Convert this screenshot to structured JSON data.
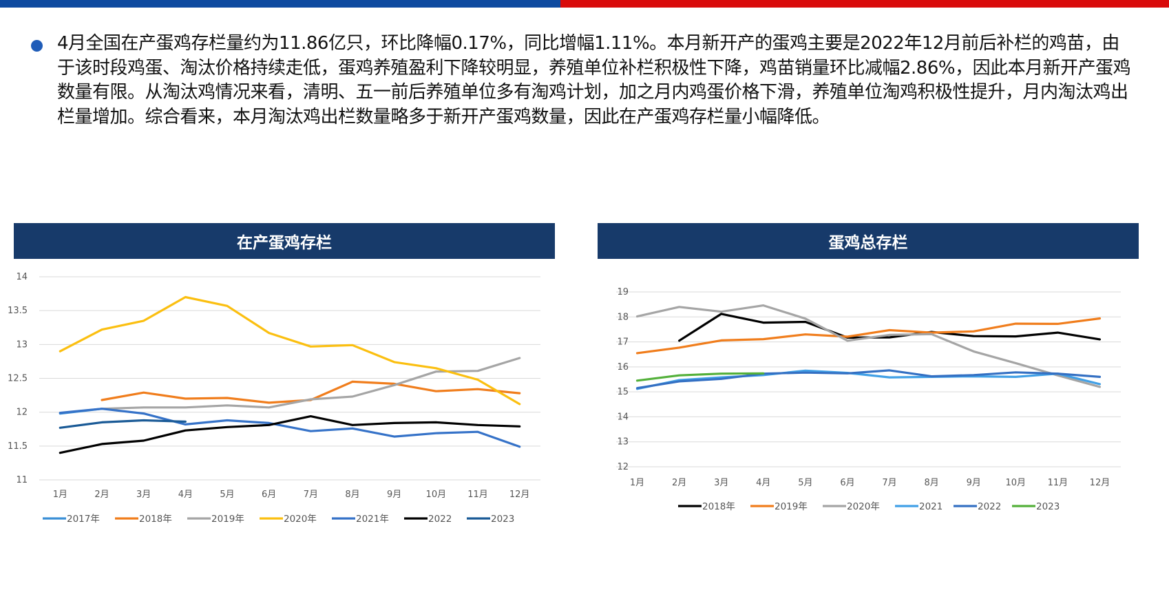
{
  "paragraph": "4月全国在产蛋鸡存栏量约为11.86亿只，环比降幅0.17%，同比增幅1.11%。本月新开产的蛋鸡主要是2022年12月前后补栏的鸡苗，由于该时段鸡蛋、淘汰价格持续走低，蛋鸡养殖盈利下降较明显，养殖单位补栏积极性下降，鸡苗销量环比减幅2.86%，因此本月新开产蛋鸡数量有限。从淘汰鸡情况来看，清明、五一前后养殖单位多有淘鸡计划，加之月内鸡蛋价格下滑，养殖单位淘鸡积极性提升，月内淘汰鸡出栏量增加。综合看来，本月淘汰鸡出栏数量略多于新开产蛋鸡数量，因此在产蛋鸡存栏量小幅降低。",
  "colors": {
    "header_bg": "#173a6a",
    "bar_blue": "#0e4aa0",
    "bar_red": "#d90b0b"
  },
  "chart_data": [
    {
      "type": "line",
      "title": "在产蛋鸡存栏",
      "xlabel": "",
      "ylabel": "",
      "categories": [
        "1月",
        "2月",
        "3月",
        "4月",
        "5月",
        "6月",
        "7月",
        "8月",
        "9月",
        "10月",
        "11月",
        "12月"
      ],
      "ylim": [
        11,
        14
      ],
      "yticks": [
        11,
        11.5,
        12,
        12.5,
        13,
        13.5,
        14
      ],
      "ytick_labels": [
        "11",
        "11.5",
        "12",
        "12.5",
        "13",
        "13.5",
        "14"
      ],
      "grid": true,
      "legend_position": "bottom",
      "series": [
        {
          "name": "2017年",
          "color": "#3b8fd6",
          "values": [
            11.98,
            12.05,
            null,
            null,
            null,
            null,
            null,
            null,
            null,
            null,
            null,
            null
          ]
        },
        {
          "name": "2018年",
          "color": "#f07d1c",
          "values": [
            null,
            12.18,
            12.29,
            12.2,
            12.21,
            12.14,
            12.18,
            12.45,
            12.42,
            12.31,
            12.34,
            12.28
          ]
        },
        {
          "name": "2019年",
          "color": "#a5a5a5",
          "values": [
            null,
            12.05,
            12.07,
            12.07,
            12.1,
            12.07,
            12.19,
            12.23,
            12.4,
            12.6,
            12.61,
            12.8
          ]
        },
        {
          "name": "2020年",
          "color": "#fbbf10",
          "values": [
            12.9,
            13.22,
            13.35,
            13.7,
            13.57,
            13.17,
            12.97,
            12.99,
            12.74,
            12.65,
            12.48,
            12.12
          ]
        },
        {
          "name": "2021年",
          "color": "#3572c8",
          "values": [
            11.99,
            12.05,
            11.98,
            11.82,
            11.88,
            11.84,
            11.72,
            11.76,
            11.64,
            11.69,
            11.71,
            11.49
          ]
        },
        {
          "name": "2022",
          "color": "#000000",
          "values": [
            11.4,
            11.53,
            11.58,
            11.73,
            11.78,
            11.81,
            11.94,
            11.81,
            11.84,
            11.85,
            11.81,
            11.79
          ]
        },
        {
          "name": "2023",
          "color": "#1a5a96",
          "values": [
            11.77,
            11.85,
            11.88,
            11.86,
            null,
            null,
            null,
            null,
            null,
            null,
            null,
            null
          ]
        }
      ]
    },
    {
      "type": "line",
      "title": "蛋鸡总存栏",
      "xlabel": "",
      "ylabel": "",
      "categories": [
        "1月",
        "2月",
        "3月",
        "4月",
        "5月",
        "6月",
        "7月",
        "8月",
        "9月",
        "10月",
        "11月",
        "12月"
      ],
      "ylim": [
        12,
        19
      ],
      "yticks": [
        12,
        13,
        14,
        15,
        16,
        17,
        18,
        19
      ],
      "ytick_labels": [
        "12",
        "13",
        "14",
        "15",
        "16",
        "17",
        "18",
        "19"
      ],
      "grid": true,
      "legend_position": "bottom",
      "series": [
        {
          "name": "2018年",
          "color": "#000000",
          "values": [
            null,
            17.05,
            18.12,
            17.77,
            17.8,
            17.17,
            17.18,
            17.4,
            17.23,
            17.22,
            17.37,
            17.1
          ]
        },
        {
          "name": "2019年",
          "color": "#f07d1c",
          "values": [
            16.55,
            16.77,
            17.06,
            17.11,
            17.3,
            17.21,
            17.47,
            17.37,
            17.42,
            17.73,
            17.72,
            17.94
          ]
        },
        {
          "name": "2020年",
          "color": "#a5a5a5",
          "values": [
            18.02,
            18.4,
            18.21,
            18.46,
            17.93,
            17.05,
            17.28,
            17.31,
            16.62,
            16.15,
            15.66,
            15.2
          ]
        },
        {
          "name": "2021",
          "color": "#41a0e6",
          "values": [
            15.12,
            15.47,
            15.58,
            15.67,
            15.85,
            15.76,
            15.58,
            15.6,
            15.62,
            15.6,
            15.73,
            15.31
          ]
        },
        {
          "name": "2022",
          "color": "#3470c3",
          "values": [
            15.15,
            15.42,
            15.52,
            15.73,
            15.77,
            15.74,
            15.86,
            15.62,
            15.67,
            15.78,
            15.73,
            15.6
          ]
        },
        {
          "name": "2023",
          "color": "#53b03a",
          "values": [
            15.45,
            15.66,
            15.73,
            15.74,
            null,
            null,
            null,
            null,
            null,
            null,
            null,
            null
          ]
        }
      ]
    }
  ]
}
